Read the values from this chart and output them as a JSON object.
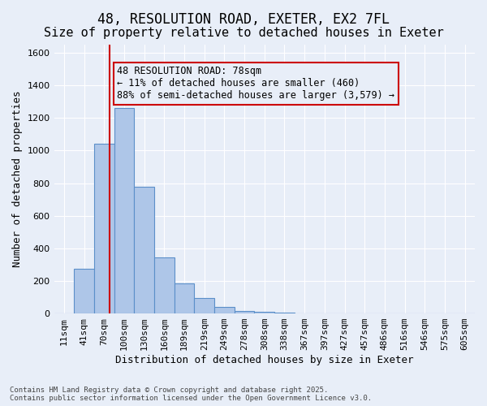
{
  "title_line1": "48, RESOLUTION ROAD, EXETER, EX2 7FL",
  "title_line2": "Size of property relative to detached houses in Exeter",
  "xlabel": "Distribution of detached houses by size in Exeter",
  "ylabel": "Number of detached properties",
  "categories": [
    "11sqm",
    "41sqm",
    "70sqm",
    "100sqm",
    "130sqm",
    "160sqm",
    "189sqm",
    "219sqm",
    "249sqm",
    "278sqm",
    "308sqm",
    "338sqm",
    "367sqm",
    "397sqm",
    "427sqm",
    "457sqm",
    "486sqm",
    "516sqm",
    "546sqm",
    "575sqm",
    "605sqm"
  ],
  "values": [
    0,
    275,
    1040,
    1260,
    780,
    345,
    185,
    95,
    40,
    17,
    8,
    4,
    2,
    1,
    0,
    0,
    0,
    0,
    0,
    0,
    0
  ],
  "bar_color": "#aec6e8",
  "bar_edge_color": "#5b8fc9",
  "background_color": "#e8eef8",
  "grid_color": "#ffffff",
  "vline_x_index": 2.5,
  "vline_color": "#cc0000",
  "annotation_box_text": "48 RESOLUTION ROAD: 78sqm\n← 11% of detached houses are smaller (460)\n88% of semi-detached houses are larger (3,579) →",
  "annotation_box_color": "#cc0000",
  "annotation_text_fontsize": 8.5,
  "ylim": [
    0,
    1650
  ],
  "yticks": [
    0,
    200,
    400,
    600,
    800,
    1000,
    1200,
    1400,
    1600
  ],
  "footnote": "Contains HM Land Registry data © Crown copyright and database right 2025.\nContains public sector information licensed under the Open Government Licence v3.0.",
  "title_fontsize": 12,
  "subtitle_fontsize": 11,
  "axis_label_fontsize": 9,
  "tick_fontsize": 8
}
